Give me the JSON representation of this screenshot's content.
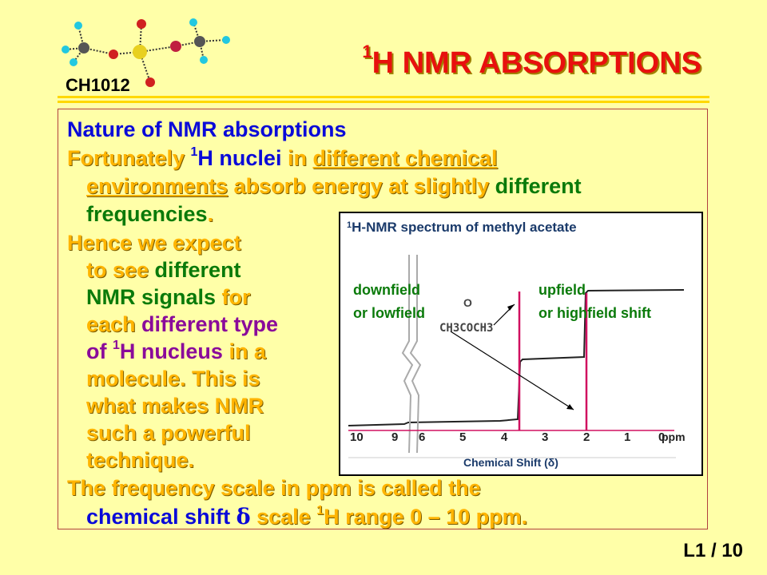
{
  "header": {
    "course_code": "CH1012",
    "title_sup": "1",
    "title_rest": "H NMR ABSORPTIONS"
  },
  "content": {
    "heading": "Nature of NMR absorptions",
    "p1": {
      "a": "Fortunately ",
      "b_sup": "1",
      "b": "H nuclei",
      "c": " in ",
      "d": "different chemical",
      "e": "environments",
      "f": " absorb energy at slightly ",
      "g": "different",
      "h": "frequencies",
      "i": "."
    },
    "p2": {
      "l1": "Hence we expect",
      "l2a": "to see ",
      "l2b": "different",
      "l3a": "NMR signals",
      "l3b": " for",
      "l4a": "each ",
      "l4b": "different type",
      "l5a": "of ",
      "l5sup": "1",
      "l5b": "H nucleus",
      "l5c": " in a",
      "l6": "molecule. This is",
      "l7": "what makes NMR",
      "l8": "such a powerful",
      "l9": "technique."
    },
    "p3": {
      "l1": "The frequency scale in ppm  is called the",
      "l2a": "chemical shift ",
      "l2b": "δ",
      "l2c": " scale ",
      "l2sup": "1",
      "l2d": "H range 0 – 10 ppm."
    }
  },
  "spectrum": {
    "title_sup": "1",
    "title": "H-NMR spectrum of methyl acetate",
    "downfield_l1": "downfield",
    "downfield_l2": "or lowfield",
    "upfield_l1": "upfield",
    "upfield_l2": "or highfield shift",
    "molecule_o": "O",
    "molecule": "CH3COCH3",
    "ticks": [
      "10",
      "9",
      "6",
      "5",
      "4",
      "3",
      "2",
      "1",
      "0"
    ],
    "ppm": "ppm",
    "xlabel": "Chemical Shift (δ)",
    "peaks_ppm": [
      3.7,
      2.0
    ]
  },
  "footer": {
    "page": "L1   /   10"
  }
}
